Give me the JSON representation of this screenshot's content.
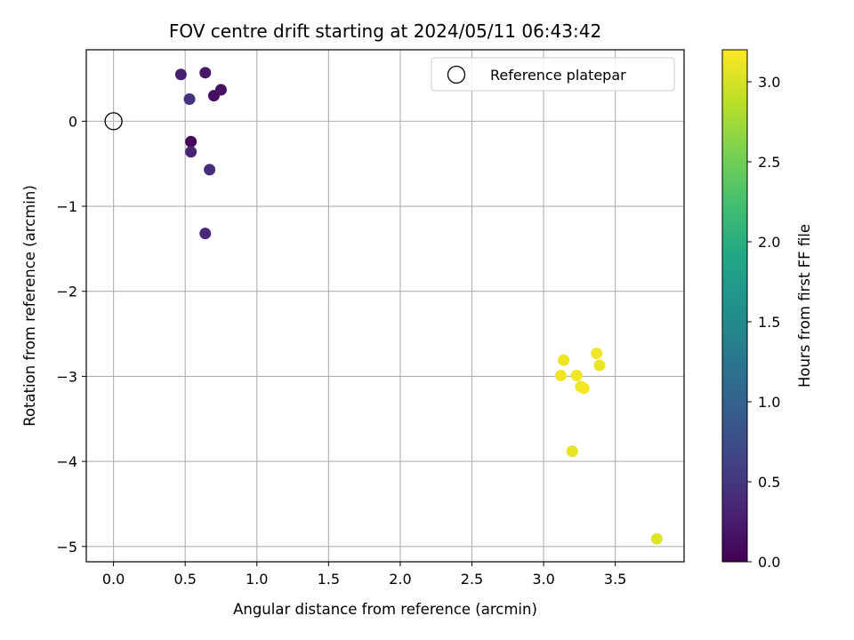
{
  "chart_data": {
    "type": "scatter",
    "title": "FOV centre drift starting at 2024/05/11 06:43:42",
    "xlabel": "Angular distance from reference (arcmin)",
    "ylabel": "Rotation from reference (arcmin)",
    "xlim": [
      -0.19,
      3.98
    ],
    "ylim": [
      -5.18,
      0.84
    ],
    "xticks": [
      0.0,
      0.5,
      1.0,
      1.5,
      2.0,
      2.5,
      3.0,
      3.5
    ],
    "xtick_labels": [
      "0.0",
      "0.5",
      "1.0",
      "1.5",
      "2.0",
      "2.5",
      "3.0",
      "3.5"
    ],
    "yticks": [
      0,
      -1,
      -2,
      -3,
      -4,
      -5
    ],
    "ytick_labels": [
      "0",
      "−1",
      "−2",
      "−3",
      "−4",
      "−5"
    ],
    "grid": true,
    "colormap": "viridis",
    "colorbar": {
      "label": "Hours from first FF file",
      "range": [
        0.0,
        3.2
      ],
      "ticks": [
        0.0,
        0.5,
        1.0,
        1.5,
        2.0,
        2.5,
        3.0
      ],
      "tick_labels": [
        "0.0",
        "0.5",
        "1.0",
        "1.5",
        "2.0",
        "2.5",
        "3.0"
      ]
    },
    "reference": {
      "name": "Reference platepar",
      "x": 0.0,
      "y": 0.0
    },
    "legend": {
      "position": "top-right",
      "entries": [
        "Reference platepar"
      ]
    },
    "points": [
      {
        "x": 0.47,
        "y": 0.55,
        "hours": 0.28
      },
      {
        "x": 0.64,
        "y": 0.57,
        "hours": 0.2
      },
      {
        "x": 0.53,
        "y": 0.26,
        "hours": 0.45
      },
      {
        "x": 0.7,
        "y": 0.3,
        "hours": 0.12
      },
      {
        "x": 0.75,
        "y": 0.37,
        "hours": 0.15
      },
      {
        "x": 0.54,
        "y": -0.24,
        "hours": 0.03
      },
      {
        "x": 0.54,
        "y": -0.36,
        "hours": 0.32
      },
      {
        "x": 0.67,
        "y": -0.57,
        "hours": 0.4
      },
      {
        "x": 0.64,
        "y": -1.32,
        "hours": 0.37
      },
      {
        "x": 3.37,
        "y": -2.73,
        "hours": 3.15
      },
      {
        "x": 3.14,
        "y": -2.81,
        "hours": 3.12
      },
      {
        "x": 3.39,
        "y": -2.87,
        "hours": 3.1
      },
      {
        "x": 3.12,
        "y": -2.99,
        "hours": 3.13
      },
      {
        "x": 3.23,
        "y": -2.99,
        "hours": 3.14
      },
      {
        "x": 3.26,
        "y": -3.12,
        "hours": 3.11
      },
      {
        "x": 3.28,
        "y": -3.14,
        "hours": 3.16
      },
      {
        "x": 3.2,
        "y": -3.88,
        "hours": 3.09
      },
      {
        "x": 3.79,
        "y": -4.91,
        "hours": 3.05
      }
    ]
  }
}
